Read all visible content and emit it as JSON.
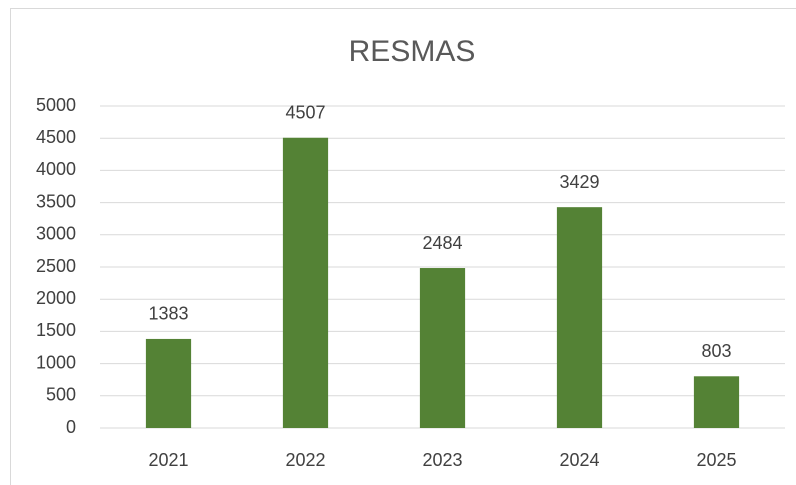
{
  "chart_data": {
    "type": "bar",
    "title": "RESMAS",
    "categories": [
      "2021",
      "2022",
      "2023",
      "2024",
      "2025"
    ],
    "values": [
      1383,
      4507,
      2484,
      3429,
      803
    ],
    "color": "#548235",
    "ylim": [
      0,
      5000
    ],
    "yticks": [
      0,
      500,
      1000,
      1500,
      2000,
      2500,
      3000,
      3500,
      4000,
      4500,
      5000
    ],
    "grid": true
  }
}
